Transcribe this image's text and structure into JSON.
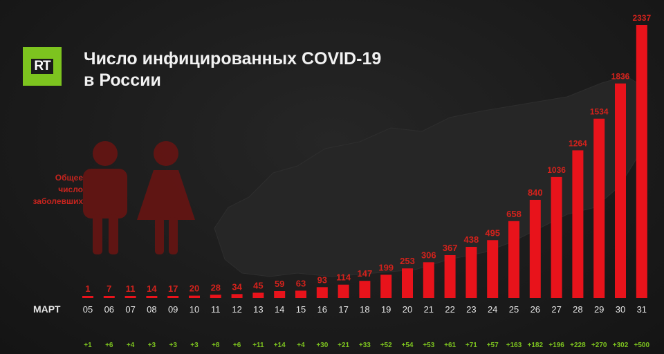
{
  "logo": {
    "text": "RT",
    "bg_color": "#7dc41f"
  },
  "title": {
    "line1": "Число инфицированных COVID-19",
    "line2": "в России"
  },
  "side_label": {
    "lines": [
      "Общее",
      "число",
      "заболевших"
    ]
  },
  "colors": {
    "bar": "#e8131b",
    "value_label": "#d3221c",
    "axis_label": "#e6e6e6",
    "increase_label": "#7dc41f",
    "figure": "#6b1412"
  },
  "icons": [
    "map-of-russia-icon",
    "man-icon",
    "woman-icon"
  ],
  "chart_data": {
    "type": "bar",
    "title": "Число инфицированных COVID-19 в России",
    "xlabel": "МАРТ",
    "categories": [
      "05",
      "06",
      "07",
      "08",
      "09",
      "10",
      "11",
      "12",
      "13",
      "14",
      "15",
      "16",
      "17",
      "18",
      "19",
      "20",
      "21",
      "22",
      "23",
      "24",
      "25",
      "26",
      "27",
      "28",
      "29",
      "30",
      "31"
    ],
    "values": [
      1,
      7,
      11,
      14,
      17,
      20,
      28,
      34,
      45,
      59,
      63,
      93,
      114,
      147,
      199,
      253,
      306,
      367,
      438,
      495,
      658,
      840,
      1036,
      1264,
      1534,
      1836,
      2337
    ],
    "increases": [
      "+1",
      "+6",
      "+4",
      "+3",
      "+3",
      "+3",
      "+8",
      "+6",
      "+11",
      "+14",
      "+4",
      "+30",
      "+21",
      "+33",
      "+52",
      "+54",
      "+53",
      "+61",
      "+71",
      "+57",
      "+163",
      "+182",
      "+196",
      "+228",
      "+270",
      "+302",
      "+500"
    ],
    "ylim": [
      0,
      2337
    ],
    "grid": false,
    "legend": "none"
  }
}
